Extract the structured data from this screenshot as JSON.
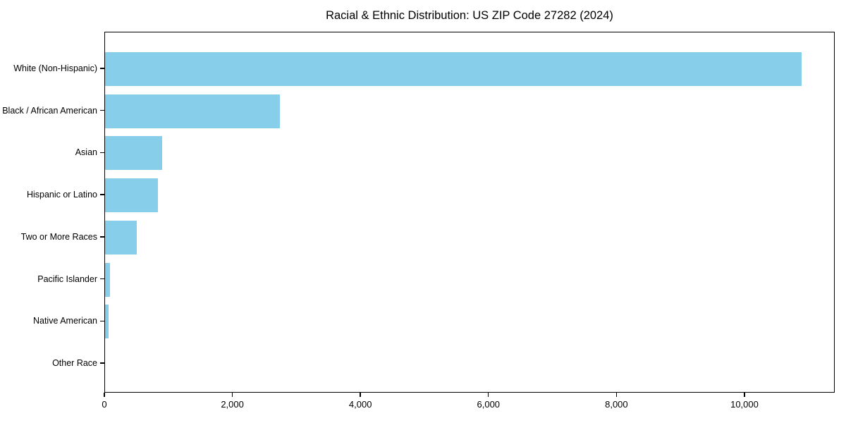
{
  "title": "Racial & Ethnic Distribution: US ZIP Code 27282 (2024)",
  "colors": {
    "bar": "#87CEEB",
    "axis": "#000000",
    "text": "#000000",
    "background": "#ffffff"
  },
  "chart_data": {
    "type": "bar",
    "orientation": "horizontal",
    "title": "Racial & Ethnic Distribution: US ZIP Code 27282 (2024)",
    "xlabel": "",
    "ylabel": "",
    "categories": [
      "White (Non-Hispanic)",
      "Black / African American",
      "Asian",
      "Hispanic or Latino",
      "Two or More Races",
      "Pacific Islander",
      "Native American",
      "Other Race"
    ],
    "values": [
      10880,
      2730,
      890,
      830,
      495,
      75,
      50,
      0
    ],
    "bar_color": "#87CEEB",
    "xlim": [
      0,
      11410
    ],
    "x_ticks": [
      0,
      2000,
      4000,
      6000,
      8000,
      10000
    ],
    "x_tick_labels": [
      "0",
      "2,000",
      "4,000",
      "6,000",
      "8,000",
      "10,000"
    ],
    "grid": false,
    "legend": null
  }
}
